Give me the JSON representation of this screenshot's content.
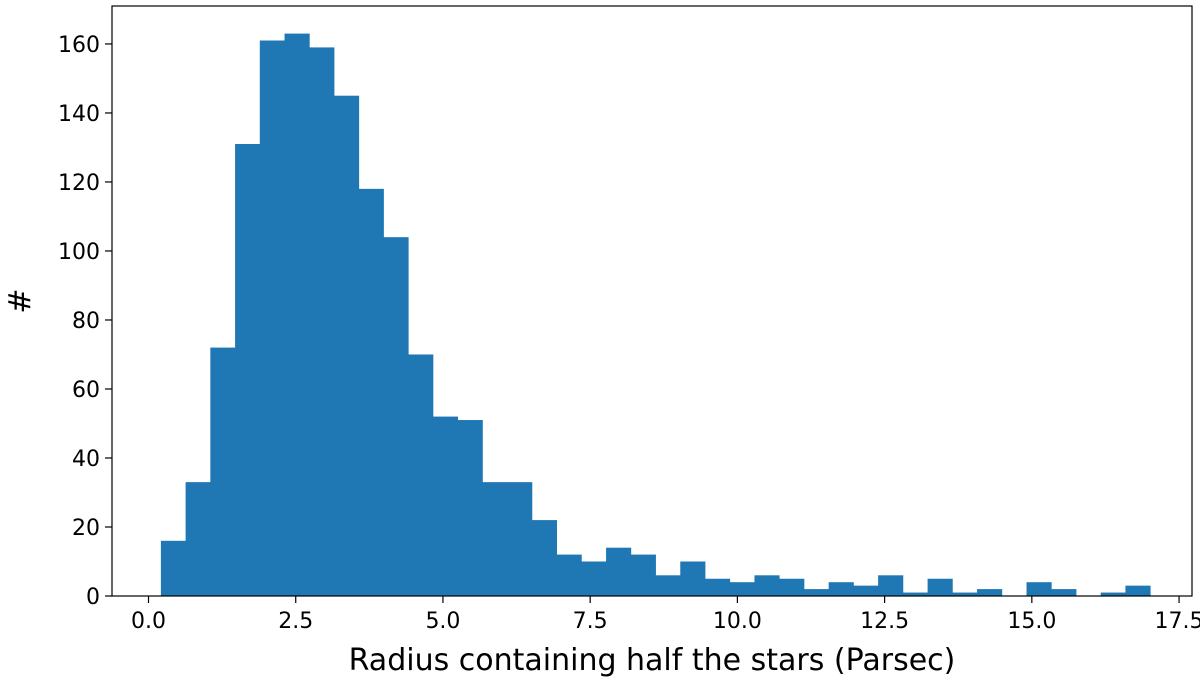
{
  "chart_data": {
    "type": "bar",
    "subtype": "histogram",
    "title": "",
    "xlabel": "Radius containing half the stars (Parsec)",
    "ylabel": "#",
    "xlim": [
      -0.62,
      17.72
    ],
    "ylim": [
      0,
      171
    ],
    "grid": false,
    "bar_color": "#1f77b4",
    "xticks": [
      {
        "value": 0.0,
        "label": "0.0"
      },
      {
        "value": 2.5,
        "label": "2.5"
      },
      {
        "value": 5.0,
        "label": "5.0"
      },
      {
        "value": 7.5,
        "label": "7.5"
      },
      {
        "value": 10.0,
        "label": "10.0"
      },
      {
        "value": 12.5,
        "label": "12.5"
      },
      {
        "value": 15.0,
        "label": "15.0"
      },
      {
        "value": 17.5,
        "label": "17.5"
      }
    ],
    "yticks": [
      {
        "value": 0,
        "label": "0"
      },
      {
        "value": 20,
        "label": "20"
      },
      {
        "value": 40,
        "label": "40"
      },
      {
        "value": 60,
        "label": "60"
      },
      {
        "value": 80,
        "label": "80"
      },
      {
        "value": 100,
        "label": "100"
      },
      {
        "value": 120,
        "label": "120"
      },
      {
        "value": 140,
        "label": "140"
      },
      {
        "value": 160,
        "label": "160"
      }
    ],
    "bin_edges": [
      0.21,
      0.63,
      1.05,
      1.47,
      1.89,
      2.31,
      2.73,
      3.15,
      3.57,
      3.99,
      4.41,
      4.83,
      5.25,
      5.67,
      6.09,
      6.51,
      6.93,
      7.35,
      7.77,
      8.19,
      8.61,
      9.03,
      9.45,
      9.87,
      10.29,
      10.71,
      11.13,
      11.55,
      11.97,
      12.39,
      12.81,
      13.23,
      13.65,
      14.07,
      14.49,
      14.91,
      15.33,
      15.75,
      16.17,
      16.59,
      17.01
    ],
    "values": [
      16,
      33,
      72,
      131,
      161,
      163,
      159,
      145,
      118,
      104,
      70,
      52,
      51,
      33,
      33,
      22,
      12,
      10,
      14,
      12,
      6,
      10,
      5,
      4,
      6,
      5,
      2,
      4,
      3,
      6,
      1,
      5,
      1,
      2,
      0,
      4,
      2,
      0,
      1,
      3
    ]
  }
}
